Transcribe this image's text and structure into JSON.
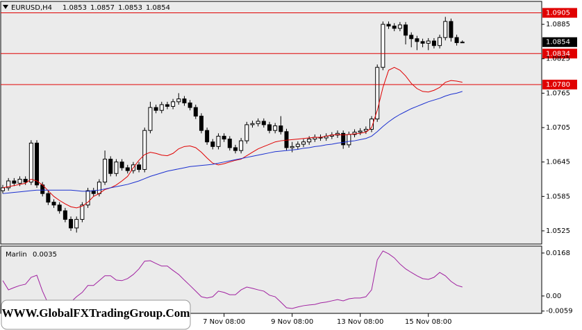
{
  "chart_data": [
    {
      "type": "candlestick",
      "symbol": "EURUSD,H4",
      "categories": [
        null,
        null,
        null,
        null,
        null,
        null,
        null,
        null,
        null,
        null,
        null,
        null,
        null,
        null,
        null,
        null,
        null,
        null,
        null,
        null,
        null,
        null,
        null,
        null,
        null,
        null,
        null,
        null,
        null,
        null,
        null,
        null,
        null,
        null,
        null,
        null,
        null,
        null,
        null,
        "7 Nov 08:00",
        null,
        null,
        null,
        null,
        null,
        null,
        null,
        null,
        null,
        null,
        null,
        "9 Nov 08:00",
        null,
        null,
        null,
        null,
        null,
        null,
        null,
        null,
        null,
        null,
        null,
        "13 Nov 08:00",
        null,
        null,
        null,
        null,
        null,
        null,
        null,
        null,
        null,
        null,
        null,
        "15 Nov 08:00",
        null,
        null,
        null,
        null,
        null,
        null
      ],
      "open": [
        1.0595,
        1.06,
        1.0612,
        1.0608,
        1.0615,
        1.061,
        1.0678,
        1.0605,
        1.059,
        1.0575,
        1.057,
        1.056,
        1.0545,
        1.053,
        1.0545,
        1.057,
        1.0595,
        1.059,
        1.061,
        1.065,
        1.0625,
        1.0645,
        1.0635,
        1.063,
        1.064,
        1.0632,
        1.07,
        1.074,
        1.0735,
        1.0745,
        1.0742,
        1.075,
        1.0755,
        1.0748,
        1.074,
        1.0725,
        1.07,
        1.068,
        1.0672,
        1.069,
        1.0685,
        1.067,
        1.0665,
        1.0682,
        1.071,
        1.0712,
        1.0716,
        1.071,
        1.07,
        1.0708,
        1.0698,
        1.067,
        1.0672,
        1.0676,
        1.068,
        1.0685,
        1.0688,
        1.0687,
        1.069,
        1.0692,
        1.0695,
        1.0675,
        1.0693,
        1.0697,
        1.0699,
        1.0702,
        1.072,
        1.081,
        1.0885,
        1.0882,
        1.0878,
        1.0884,
        1.0866,
        1.086,
        1.0855,
        1.0852,
        1.0856,
        1.0848,
        1.0862,
        1.089,
        1.0862,
        1.0853
      ],
      "high": [
        1.0605,
        1.0617,
        1.0617,
        1.062,
        1.062,
        1.0683,
        1.0683,
        1.061,
        1.0595,
        1.058,
        1.0575,
        1.0565,
        1.055,
        1.055,
        1.0575,
        1.06,
        1.06,
        1.0615,
        1.0665,
        1.0655,
        1.065,
        1.065,
        1.064,
        1.0645,
        1.0645,
        1.0705,
        1.075,
        1.0745,
        1.075,
        1.075,
        1.0755,
        1.0765,
        1.076,
        1.0753,
        1.0745,
        1.073,
        1.0705,
        1.0685,
        1.0695,
        1.0695,
        1.069,
        1.0675,
        1.0687,
        1.0715,
        1.0717,
        1.0721,
        1.0721,
        1.0715,
        1.0713,
        1.0725,
        1.0703,
        1.068,
        1.0681,
        1.0685,
        1.069,
        1.0693,
        1.0693,
        1.0695,
        1.0697,
        1.07,
        1.07,
        1.0698,
        1.0702,
        1.0704,
        1.0707,
        1.0725,
        1.0815,
        1.089,
        1.089,
        1.0887,
        1.0889,
        1.0889,
        1.0871,
        1.0865,
        1.086,
        1.0861,
        1.0861,
        1.0867,
        1.0898,
        1.0895,
        1.0867,
        1.0857
      ],
      "low": [
        1.059,
        1.0595,
        1.0603,
        1.0603,
        1.0605,
        1.0605,
        1.06,
        1.0585,
        1.057,
        1.0565,
        1.0555,
        1.054,
        1.0525,
        1.0522,
        1.054,
        1.0565,
        1.0585,
        1.0585,
        1.0605,
        1.062,
        1.062,
        1.063,
        1.0625,
        1.0625,
        1.0627,
        1.0627,
        1.0695,
        1.073,
        1.073,
        1.0737,
        1.0737,
        1.0745,
        1.0743,
        1.0735,
        1.072,
        1.0695,
        1.0675,
        1.0667,
        1.0667,
        1.068,
        1.0665,
        1.066,
        1.066,
        1.0677,
        1.0705,
        1.0707,
        1.0705,
        1.0695,
        1.0695,
        1.0693,
        1.0665,
        1.0662,
        1.0667,
        1.0671,
        1.0675,
        1.068,
        1.0682,
        1.0682,
        1.0685,
        1.0687,
        1.0668,
        1.067,
        1.0688,
        1.0692,
        1.0694,
        1.0697,
        1.0715,
        1.0805,
        1.0877,
        1.0873,
        1.0873,
        1.085,
        1.0845,
        1.084,
        1.0845,
        1.084,
        1.0843,
        1.0843,
        1.0857,
        1.0855,
        1.0848,
        1.0853
      ],
      "close": [
        1.06,
        1.0612,
        1.0608,
        1.0615,
        1.061,
        1.0678,
        1.0605,
        1.059,
        1.0575,
        1.057,
        1.056,
        1.0545,
        1.053,
        1.0545,
        1.057,
        1.0595,
        1.059,
        1.061,
        1.065,
        1.0625,
        1.0645,
        1.0635,
        1.063,
        1.064,
        1.0632,
        1.07,
        1.074,
        1.0735,
        1.0745,
        1.0742,
        1.075,
        1.0755,
        1.0748,
        1.074,
        1.0725,
        1.07,
        1.068,
        1.0672,
        1.069,
        1.0685,
        1.067,
        1.0665,
        1.0682,
        1.071,
        1.0712,
        1.0716,
        1.071,
        1.07,
        1.0708,
        1.0698,
        1.067,
        1.0672,
        1.0676,
        1.068,
        1.0685,
        1.0688,
        1.0687,
        1.069,
        1.0692,
        1.0695,
        1.0675,
        1.0693,
        1.0697,
        1.0699,
        1.0702,
        1.072,
        1.081,
        1.0885,
        1.0882,
        1.0878,
        1.0884,
        1.0866,
        1.086,
        1.0855,
        1.0852,
        1.0856,
        1.0848,
        1.0862,
        1.089,
        1.0862,
        1.0853,
        1.0854
      ],
      "series": [
        {
          "color": "#e00000",
          "values": [
            1.06,
            1.0602,
            1.0604,
            1.0606,
            1.0608,
            1.0615,
            1.0612,
            1.0605,
            1.0595,
            1.0585,
            1.0578,
            1.0572,
            1.0567,
            1.0565,
            1.0568,
            1.0575,
            1.0585,
            1.059,
            1.0597,
            1.06,
            1.0605,
            1.0612,
            1.062,
            1.0635,
            1.0648,
            1.0658,
            1.0662,
            1.066,
            1.0657,
            1.0656,
            1.066,
            1.0668,
            1.0672,
            1.0673,
            1.067,
            1.0662,
            1.0652,
            1.0643,
            1.064,
            1.0642,
            1.0645,
            1.0648,
            1.065,
            1.0656,
            1.0662,
            1.0668,
            1.0672,
            1.0676,
            1.068,
            1.0682,
            1.0683,
            1.0684,
            1.0685,
            1.0686,
            1.0687,
            1.0688,
            1.0688,
            1.069,
            1.0692,
            1.0693,
            1.0692,
            1.0693,
            1.0694,
            1.0695,
            1.0697,
            1.0705,
            1.0735,
            1.0775,
            1.0805,
            1.081,
            1.0805,
            1.0795,
            1.0782,
            1.0773,
            1.0768,
            1.0767,
            1.077,
            1.0775,
            1.0784,
            1.0787,
            1.0786,
            1.0784
          ]
        },
        {
          "color": "#1a2fd0",
          "values": [
            1.059,
            1.0591,
            1.0592,
            1.0593,
            1.0594,
            1.0595,
            1.0596,
            1.0596,
            1.0596,
            1.0596,
            1.0596,
            1.0596,
            1.0596,
            1.0595,
            1.0594,
            1.0594,
            1.0595,
            1.0596,
            1.0598,
            1.06,
            1.0602,
            1.0604,
            1.0606,
            1.0609,
            1.0612,
            1.0616,
            1.062,
            1.0623,
            1.0626,
            1.0629,
            1.0631,
            1.0633,
            1.0635,
            1.0637,
            1.0638,
            1.0639,
            1.064,
            1.0641,
            1.0643,
            1.0645,
            1.0647,
            1.0649,
            1.0651,
            1.0653,
            1.0655,
            1.0657,
            1.0659,
            1.0661,
            1.0663,
            1.0664,
            1.0665,
            1.0666,
            1.0667,
            1.0669,
            1.067,
            1.0672,
            1.0673,
            1.0675,
            1.0676,
            1.0678,
            1.0679,
            1.0681,
            1.0682,
            1.0684,
            1.0686,
            1.069,
            1.0698,
            1.0707,
            1.0715,
            1.0722,
            1.0728,
            1.0733,
            1.0738,
            1.0742,
            1.0746,
            1.075,
            1.0753,
            1.0756,
            1.076,
            1.0763,
            1.0765,
            1.0768
          ]
        }
      ],
      "levels": [
        1.0905,
        1.0834,
        {
          "value": 1.078,
          "label": "1.0780"
        }
      ],
      "level_color": "#e00000",
      "ylim": [
        1.0502,
        1.0925
      ],
      "yticks": [
        1.0885,
        1.0825,
        1.0765,
        1.0705,
        1.0645,
        1.0585,
        1.0525
      ]
    },
    {
      "type": "line",
      "series": [
        {
          "name": "Marlin",
          "color": "#a020a0",
          "value": 0.0035,
          "values": [
            0.006,
            0.0024,
            0.0033,
            0.0041,
            0.0046,
            0.0073,
            0.0081,
            0.0019,
            -0.003,
            -0.0035,
            -0.0035,
            -0.0035,
            -0.0024,
            -0.0003,
            0.0014,
            0.0041,
            0.0041,
            0.006,
            0.0079,
            0.0079,
            0.0062,
            0.006,
            0.0068,
            0.0084,
            0.0106,
            0.0136,
            0.0138,
            0.0127,
            0.0117,
            0.0117,
            0.01,
            0.0084,
            0.0062,
            0.0041,
            0.0019,
            -0.0003,
            -0.0008,
            -0.0003,
            0.0019,
            0.0014,
            0.0005,
            0.0005,
            0.0024,
            0.0035,
            0.003,
            0.0024,
            0.0019,
            0.0003,
            -0.0003,
            -0.0024,
            -0.0046,
            -0.0049,
            -0.0043,
            -0.0038,
            -0.0035,
            -0.0033,
            -0.0027,
            -0.0024,
            -0.0019,
            -0.0014,
            -0.0019,
            -0.0011,
            -0.0008,
            -0.0008,
            -0.0003,
            0.0024,
            0.0141,
            0.0176,
            0.0165,
            0.0149,
            0.0125,
            0.0106,
            0.0092,
            0.0079,
            0.0068,
            0.0065,
            0.0073,
            0.0092,
            0.0079,
            0.0057,
            0.0042,
            0.0035
          ]
        }
      ],
      "ylim": [
        -0.0068,
        0.0195
      ],
      "yticks": [
        0.0168,
        {
          "value": 0,
          "label": "0.00"
        },
        -0.0059
      ]
    }
  ],
  "watermark": "WWW.GlobalFXTradingGroup.Com"
}
